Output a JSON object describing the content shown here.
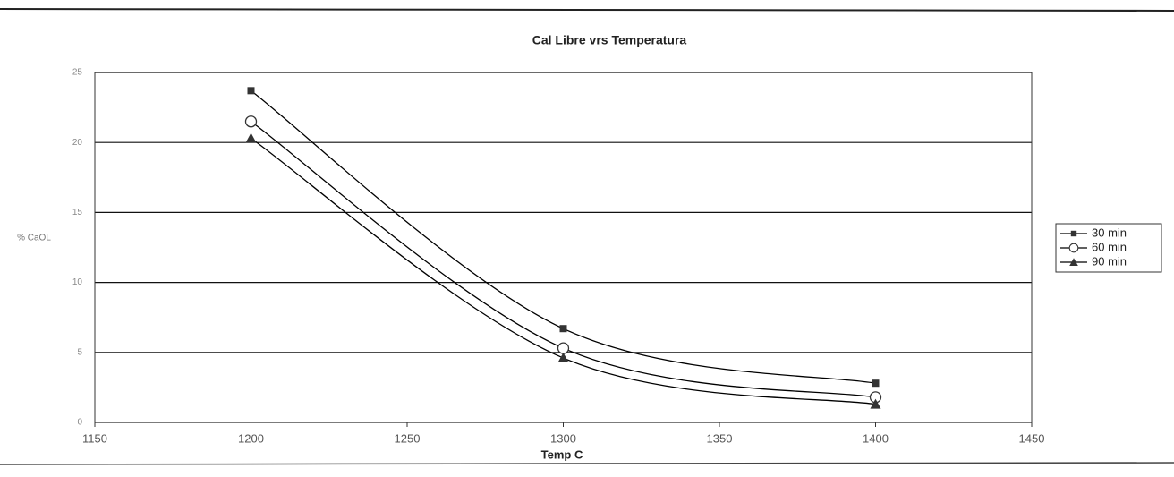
{
  "chart_data": {
    "type": "line",
    "title": "Cal Libre vrs Temperatura",
    "x_label": "Temp C",
    "y_label": "% CaOL",
    "x": [
      1200,
      1300,
      1400
    ],
    "series": [
      {
        "name": "30 min",
        "color": "#000000",
        "marker": "square",
        "values": [
          23.7,
          6.7,
          2.8
        ]
      },
      {
        "name": "60 min",
        "color": "#000000",
        "marker": "circle",
        "values": [
          21.5,
          5.3,
          1.8
        ]
      },
      {
        "name": "90 min",
        "color": "#000000",
        "marker": "triangle",
        "values": [
          20.3,
          4.6,
          1.3
        ]
      }
    ],
    "xlim": [
      1150,
      1450
    ],
    "xticks": [
      1150,
      1200,
      1250,
      1300,
      1350,
      1400,
      1450
    ],
    "ylim": [
      0,
      25
    ],
    "yticks": [
      0,
      5,
      10,
      15,
      20,
      25
    ],
    "grid": true,
    "smooth": true,
    "legend": "right"
  }
}
